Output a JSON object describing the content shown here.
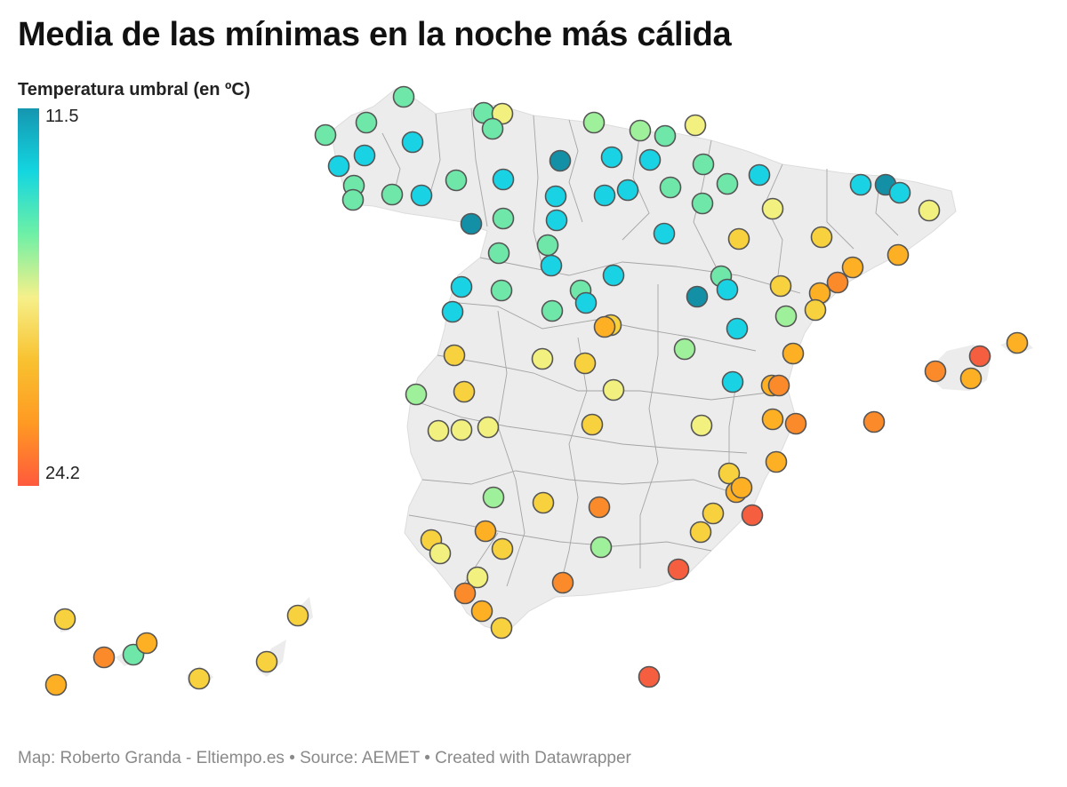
{
  "title": "Media de las mínimas en la noche más cálida",
  "legend": {
    "title": "Temperatura umbral (en ºC)",
    "max_label": "11.5",
    "min_label": "24.2",
    "max_value": 11.5,
    "min_value": 24.2,
    "gradient_colors": [
      "#1596b0",
      "#13d6e0",
      "#6ef0a6",
      "#f6f08a",
      "#f8c230",
      "#ff9a22",
      "#ff5a3c"
    ]
  },
  "footer": "Map: Roberto Granda - Eltiempo.es • Source: AEMET • Created with Datawrapper",
  "colors": {
    "land": "#ececec",
    "border": "#9a9a9a",
    "marker_stroke": "#555555"
  }
}
